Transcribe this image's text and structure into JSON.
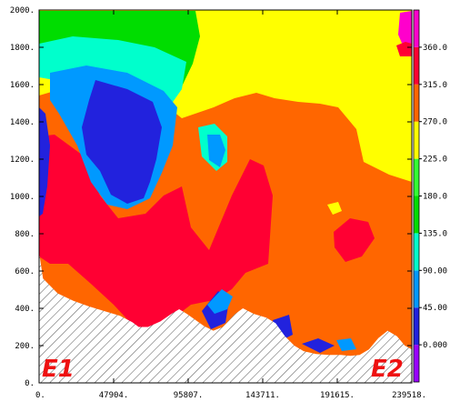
{
  "chart_data": {
    "type": "heatmap",
    "title": "",
    "xlabel": "",
    "ylabel": "",
    "xlim": [
      0,
      239518
    ],
    "ylim": [
      0,
      2000
    ],
    "x_ticks": [
      0,
      47904,
      95807,
      143711,
      191615,
      239518
    ],
    "x_tick_labels": [
      "0.",
      "47904.",
      "95807.",
      "143711.",
      "191615.",
      "239518."
    ],
    "y_ticks": [
      0,
      200,
      400,
      600,
      800,
      1000,
      1200,
      1400,
      1600,
      1800,
      2000
    ],
    "y_tick_labels": [
      "0.",
      "200.",
      "400.",
      "600.",
      "800.",
      "1000.",
      "1200.",
      "1400.",
      "1600.",
      "1800.",
      "2000."
    ],
    "colorbar": {
      "range": [
        -45,
        405
      ],
      "levels": [
        0,
        45,
        90,
        135,
        180,
        225,
        270,
        315,
        360
      ],
      "labels": [
        "0.000",
        "45.00",
        "90.00",
        "135.0",
        "180.0",
        "225.0",
        "270.0",
        "315.0",
        "360.0"
      ],
      "colors": [
        "#9900ff",
        "#2222dd",
        "#0099ff",
        "#00ffcc",
        "#00dd00",
        "#33ff33",
        "#ffff00",
        "#ff6600",
        "#ff0033",
        "#ff00cc"
      ]
    },
    "terrain": {
      "hatched": true,
      "profile": [
        [
          0,
          700
        ],
        [
          2500,
          560
        ],
        [
          12000,
          480
        ],
        [
          22000,
          440
        ],
        [
          32000,
          410
        ],
        [
          42000,
          385
        ],
        [
          52000,
          360
        ],
        [
          60000,
          325
        ],
        [
          64000,
          300
        ],
        [
          70000,
          300
        ],
        [
          78000,
          330
        ],
        [
          85000,
          370
        ],
        [
          90000,
          395
        ],
        [
          95000,
          370
        ],
        [
          100000,
          340
        ],
        [
          106000,
          305
        ],
        [
          112000,
          280
        ],
        [
          118000,
          300
        ],
        [
          126000,
          370
        ],
        [
          131000,
          400
        ],
        [
          138000,
          370
        ],
        [
          146000,
          350
        ],
        [
          152000,
          320
        ],
        [
          158000,
          250
        ],
        [
          164000,
          200
        ],
        [
          170000,
          170
        ],
        [
          178000,
          155
        ],
        [
          186000,
          150
        ],
        [
          194000,
          150
        ],
        [
          200000,
          145
        ],
        [
          206000,
          150
        ],
        [
          212000,
          180
        ],
        [
          218000,
          240
        ],
        [
          224000,
          280
        ],
        [
          230000,
          250
        ],
        [
          235000,
          200
        ],
        [
          239518,
          180
        ]
      ]
    },
    "markers": [
      "E1",
      "E2"
    ]
  }
}
